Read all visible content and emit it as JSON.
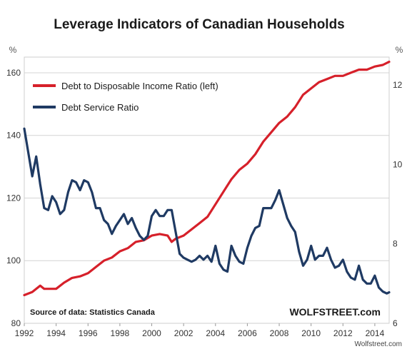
{
  "chart_data": {
    "type": "line",
    "title": "Leverage Indicators of Canadian Households",
    "left_unit": "%",
    "right_unit": "%",
    "x_ticks": [
      "1992",
      "1994",
      "1996",
      "1998",
      "2000",
      "2002",
      "2004",
      "2006",
      "2008",
      "2010",
      "2012",
      "2014"
    ],
    "x_range": [
      1992,
      2014.9
    ],
    "y_left": {
      "range": [
        80,
        165
      ],
      "ticks": [
        "80",
        "100",
        "120",
        "140",
        "160"
      ]
    },
    "y_right": {
      "range": [
        6,
        12.7
      ],
      "ticks": [
        "6",
        "8",
        "10",
        "12"
      ]
    },
    "grid": true,
    "legend_placement": "top-left",
    "series": [
      {
        "name": "Debt to Disposable Income Ratio (left)",
        "axis": "left",
        "color": "#d6202a",
        "x": [
          1992,
          1992.5,
          1993,
          1993.25,
          1993.5,
          1994,
          1994.5,
          1995,
          1995.5,
          1996,
          1996.5,
          1997,
          1997.5,
          1998,
          1998.5,
          1999,
          1999.5,
          2000,
          2000.5,
          2001,
          2001.25,
          2001.5,
          2002,
          2002.5,
          2003,
          2003.5,
          2004,
          2004.5,
          2005,
          2005.5,
          2006,
          2006.5,
          2007,
          2007.5,
          2008,
          2008.5,
          2009,
          2009.5,
          2010,
          2010.5,
          2011,
          2011.5,
          2012,
          2012.5,
          2013,
          2013.5,
          2014,
          2014.5,
          2014.9
        ],
        "values": [
          89,
          90,
          92,
          91,
          91,
          91,
          93,
          94.5,
          95,
          96,
          98,
          100,
          101,
          103,
          104,
          106,
          106.5,
          108,
          108.5,
          108,
          106,
          107,
          108,
          110,
          112,
          114,
          118,
          122,
          126,
          129,
          131,
          134,
          138,
          141,
          144,
          146,
          149,
          153,
          155,
          157,
          158,
          159,
          159,
          160,
          161,
          161,
          162,
          162.5,
          163.5
        ]
      },
      {
        "name": "Debt Service Ratio",
        "axis": "right",
        "color": "#1f3a63",
        "x": [
          1992,
          1992.25,
          1992.5,
          1992.75,
          1993,
          1993.25,
          1993.5,
          1993.75,
          1994,
          1994.25,
          1994.5,
          1994.75,
          1995,
          1995.25,
          1995.5,
          1995.75,
          1996,
          1996.25,
          1996.5,
          1996.75,
          1997,
          1997.25,
          1997.5,
          1997.75,
          1998,
          1998.25,
          1998.5,
          1998.75,
          1999,
          1999.25,
          1999.5,
          1999.75,
          2000,
          2000.25,
          2000.5,
          2000.75,
          2001,
          2001.25,
          2001.5,
          2001.75,
          2002,
          2002.25,
          2002.5,
          2002.75,
          2003,
          2003.25,
          2003.5,
          2003.75,
          2004,
          2004.25,
          2004.5,
          2004.75,
          2005,
          2005.25,
          2005.5,
          2005.75,
          2006,
          2006.25,
          2006.5,
          2006.75,
          2007,
          2007.25,
          2007.5,
          2007.75,
          2008,
          2008.25,
          2008.5,
          2008.75,
          2009,
          2009.25,
          2009.5,
          2009.75,
          2010,
          2010.25,
          2010.5,
          2010.75,
          2011,
          2011.25,
          2011.5,
          2011.75,
          2012,
          2012.25,
          2012.5,
          2012.75,
          2013,
          2013.25,
          2013.5,
          2013.75,
          2014,
          2014.25,
          2014.5,
          2014.75,
          2014.9
        ],
        "values": [
          10.9,
          10.3,
          9.7,
          10.2,
          9.5,
          8.9,
          8.85,
          9.2,
          9.05,
          8.75,
          8.85,
          9.3,
          9.6,
          9.55,
          9.35,
          9.6,
          9.55,
          9.3,
          8.9,
          8.9,
          8.6,
          8.5,
          8.25,
          8.45,
          8.6,
          8.75,
          8.5,
          8.65,
          8.4,
          8.2,
          8.1,
          8.2,
          8.7,
          8.85,
          8.7,
          8.7,
          8.85,
          8.85,
          8.3,
          7.75,
          7.65,
          7.6,
          7.55,
          7.6,
          7.7,
          7.6,
          7.7,
          7.55,
          7.95,
          7.5,
          7.35,
          7.3,
          7.95,
          7.7,
          7.55,
          7.5,
          7.9,
          8.2,
          8.4,
          8.45,
          8.9,
          8.9,
          8.9,
          9.1,
          9.35,
          9.0,
          8.65,
          8.45,
          8.3,
          7.8,
          7.45,
          7.6,
          7.95,
          7.6,
          7.7,
          7.7,
          7.9,
          7.6,
          7.4,
          7.45,
          7.6,
          7.3,
          7.15,
          7.1,
          7.45,
          7.1,
          7.0,
          7.0,
          7.2,
          6.9,
          6.8,
          6.75,
          6.78
        ]
      }
    ],
    "annotations": {
      "source": "Source of data: Statistics Canada",
      "brand": "WOLFSTREET.com",
      "credit": "Wolfstreet.com"
    }
  }
}
